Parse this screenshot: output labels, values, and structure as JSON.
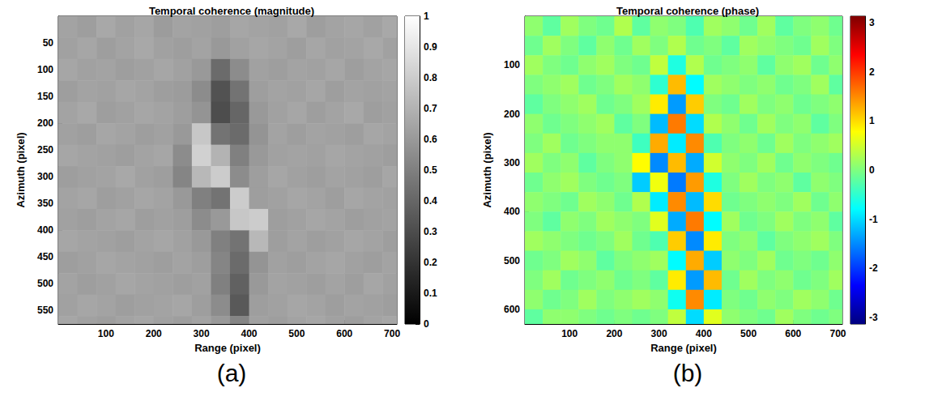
{
  "chart_data": [
    {
      "type": "heatmap",
      "title": "Temporal coherence (magnitude)",
      "x_label": "Range (pixel)",
      "y_label": "Azimuth (pixel)",
      "panel_label": "(a)",
      "xlim": [
        0,
        710
      ],
      "ylim": [
        0,
        575
      ],
      "xticks": [
        100,
        200,
        300,
        400,
        500,
        600,
        700
      ],
      "yticks": [
        50,
        100,
        150,
        200,
        250,
        300,
        350,
        400,
        450,
        500,
        550
      ],
      "x_bins": [
        0,
        40,
        80,
        120,
        160,
        200,
        240,
        280,
        320,
        360,
        400,
        440,
        480,
        520,
        560,
        600,
        640,
        680,
        720
      ],
      "y_bins": [
        0,
        40,
        80,
        120,
        160,
        200,
        240,
        280,
        320,
        360,
        400,
        440,
        480,
        520,
        560,
        600
      ],
      "values": [
        [
          0.64,
          0.62,
          0.66,
          0.63,
          0.65,
          0.61,
          0.64,
          0.63,
          0.62,
          0.65,
          0.64,
          0.63,
          0.66,
          0.62,
          0.64,
          0.65,
          0.63,
          0.66
        ],
        [
          0.63,
          0.65,
          0.62,
          0.64,
          0.66,
          0.63,
          0.62,
          0.64,
          0.6,
          0.63,
          0.65,
          0.64,
          0.62,
          0.65,
          0.63,
          0.64,
          0.66,
          0.63
        ],
        [
          0.65,
          0.63,
          0.64,
          0.62,
          0.63,
          0.65,
          0.63,
          0.6,
          0.42,
          0.55,
          0.63,
          0.62,
          0.64,
          0.63,
          0.65,
          0.62,
          0.64,
          0.65
        ],
        [
          0.62,
          0.64,
          0.63,
          0.65,
          0.64,
          0.62,
          0.61,
          0.55,
          0.32,
          0.45,
          0.62,
          0.64,
          0.63,
          0.65,
          0.62,
          0.64,
          0.63,
          0.64
        ],
        [
          0.64,
          0.66,
          0.62,
          0.63,
          0.65,
          0.64,
          0.62,
          0.58,
          0.3,
          0.4,
          0.6,
          0.63,
          0.65,
          0.62,
          0.64,
          0.66,
          0.62,
          0.63
        ],
        [
          0.63,
          0.62,
          0.65,
          0.64,
          0.62,
          0.63,
          0.6,
          0.78,
          0.45,
          0.42,
          0.58,
          0.64,
          0.62,
          0.64,
          0.63,
          0.62,
          0.65,
          0.64
        ],
        [
          0.65,
          0.64,
          0.63,
          0.62,
          0.64,
          0.65,
          0.55,
          0.82,
          0.7,
          0.5,
          0.6,
          0.63,
          0.64,
          0.63,
          0.65,
          0.64,
          0.63,
          0.62
        ],
        [
          0.62,
          0.63,
          0.64,
          0.66,
          0.63,
          0.62,
          0.52,
          0.72,
          0.8,
          0.55,
          0.62,
          0.65,
          0.63,
          0.62,
          0.64,
          0.63,
          0.62,
          0.65
        ],
        [
          0.64,
          0.65,
          0.62,
          0.63,
          0.65,
          0.64,
          0.6,
          0.5,
          0.45,
          0.8,
          0.62,
          0.63,
          0.65,
          0.64,
          0.62,
          0.65,
          0.64,
          0.63
        ],
        [
          0.63,
          0.62,
          0.64,
          0.65,
          0.62,
          0.63,
          0.62,
          0.55,
          0.6,
          0.78,
          0.8,
          0.62,
          0.63,
          0.65,
          0.64,
          0.62,
          0.63,
          0.64
        ],
        [
          0.65,
          0.64,
          0.63,
          0.62,
          0.64,
          0.65,
          0.63,
          0.6,
          0.5,
          0.45,
          0.72,
          0.62,
          0.64,
          0.62,
          0.63,
          0.65,
          0.64,
          0.62
        ],
        [
          0.62,
          0.63,
          0.65,
          0.64,
          0.63,
          0.62,
          0.64,
          0.62,
          0.52,
          0.42,
          0.58,
          0.63,
          0.62,
          0.64,
          0.65,
          0.63,
          0.62,
          0.64
        ],
        [
          0.64,
          0.62,
          0.63,
          0.65,
          0.64,
          0.63,
          0.62,
          0.63,
          0.5,
          0.38,
          0.6,
          0.64,
          0.63,
          0.62,
          0.64,
          0.62,
          0.65,
          0.63
        ],
        [
          0.63,
          0.65,
          0.64,
          0.62,
          0.63,
          0.64,
          0.65,
          0.62,
          0.55,
          0.35,
          0.62,
          0.63,
          0.65,
          0.64,
          0.62,
          0.64,
          0.63,
          0.62
        ],
        [
          0.65,
          0.63,
          0.62,
          0.64,
          0.65,
          0.63,
          0.62,
          0.64,
          0.6,
          0.52,
          0.63,
          0.62,
          0.64,
          0.65,
          0.63,
          0.62,
          0.64,
          0.65
        ]
      ],
      "colorbar": {
        "range": [
          0,
          1
        ],
        "ticks": [
          0,
          0.1,
          0.2,
          0.3,
          0.4,
          0.5,
          0.6,
          0.7,
          0.8,
          0.9,
          1
        ],
        "colors": [
          "#000000",
          "#ffffff"
        ]
      }
    },
    {
      "type": "heatmap",
      "title": "Temporal coherence (phase)",
      "x_label": "Range (pixel)",
      "y_label": "Azimuth (pixel)",
      "panel_label": "(b)",
      "xlim": [
        0,
        710
      ],
      "ylim": [
        0,
        630
      ],
      "xticks": [
        100,
        200,
        300,
        400,
        500,
        600,
        700
      ],
      "yticks": [
        100,
        200,
        300,
        400,
        500,
        600
      ],
      "x_bins": [
        0,
        40,
        80,
        120,
        160,
        200,
        240,
        280,
        320,
        360,
        400,
        440,
        480,
        520,
        560,
        600,
        640,
        680,
        720
      ],
      "y_bins": [
        0,
        40,
        80,
        120,
        160,
        200,
        240,
        280,
        320,
        360,
        400,
        440,
        480,
        520,
        560,
        600,
        640
      ],
      "values": [
        [
          0.1,
          -0.2,
          0.2,
          0.0,
          -0.1,
          0.3,
          -0.2,
          0.1,
          0.0,
          -0.3,
          0.2,
          0.1,
          -0.1,
          0.2,
          -0.2,
          0.0,
          0.1,
          -0.1
        ],
        [
          -0.1,
          0.2,
          0.0,
          -0.2,
          0.1,
          -0.1,
          0.2,
          0.0,
          0.3,
          -0.1,
          0.0,
          -0.2,
          0.2,
          0.1,
          0.0,
          -0.1,
          0.2,
          0.0
        ],
        [
          0.2,
          0.0,
          -0.1,
          0.1,
          0.2,
          0.0,
          -0.1,
          0.4,
          -0.6,
          0.3,
          -0.1,
          0.0,
          0.1,
          -0.2,
          0.1,
          0.2,
          -0.1,
          0.1
        ],
        [
          0.0,
          0.1,
          0.2,
          -0.1,
          0.0,
          0.2,
          0.1,
          -0.5,
          1.2,
          -0.8,
          0.2,
          0.1,
          0.0,
          0.1,
          -0.1,
          0.0,
          0.2,
          -0.2
        ],
        [
          -0.2,
          0.0,
          0.1,
          0.2,
          -0.1,
          0.0,
          0.2,
          0.9,
          -1.4,
          1.1,
          0.0,
          -0.1,
          0.2,
          0.0,
          0.1,
          -0.1,
          0.0,
          0.1
        ],
        [
          0.1,
          -0.1,
          0.0,
          0.1,
          0.2,
          -0.2,
          0.0,
          -1.2,
          1.6,
          -1.0,
          0.3,
          0.1,
          -0.1,
          0.2,
          0.0,
          0.1,
          -0.2,
          0.0
        ],
        [
          0.0,
          0.2,
          -0.1,
          0.0,
          0.1,
          0.1,
          -0.4,
          1.3,
          -0.9,
          1.5,
          -0.3,
          0.0,
          0.1,
          -0.1,
          0.2,
          0.0,
          0.1,
          0.2
        ],
        [
          0.2,
          0.0,
          0.1,
          -0.2,
          0.0,
          0.1,
          0.8,
          -1.5,
          1.2,
          -1.3,
          0.5,
          0.1,
          0.0,
          0.2,
          -0.1,
          0.1,
          0.0,
          -0.1
        ],
        [
          -0.1,
          0.1,
          0.2,
          0.0,
          -0.1,
          0.0,
          -1.1,
          0.7,
          -1.6,
          1.4,
          -0.6,
          0.0,
          0.2,
          0.0,
          0.1,
          -0.2,
          0.1,
          0.0
        ],
        [
          0.1,
          0.0,
          -0.1,
          0.2,
          0.1,
          -0.1,
          0.3,
          -0.9,
          1.5,
          -1.2,
          1.0,
          -0.1,
          0.0,
          0.1,
          0.0,
          0.2,
          -0.1,
          0.1
        ],
        [
          0.0,
          -0.2,
          0.1,
          0.0,
          0.2,
          0.1,
          0.0,
          0.6,
          -1.3,
          1.6,
          -0.8,
          0.2,
          -0.1,
          0.0,
          0.2,
          0.0,
          0.1,
          -0.2
        ],
        [
          0.2,
          0.1,
          0.0,
          -0.1,
          0.0,
          0.2,
          -0.1,
          -0.3,
          1.1,
          -1.5,
          0.9,
          0.0,
          0.1,
          -0.2,
          0.0,
          0.1,
          0.2,
          0.0
        ],
        [
          -0.1,
          0.0,
          0.2,
          0.1,
          -0.2,
          0.0,
          0.1,
          0.2,
          -0.8,
          1.3,
          -1.1,
          0.1,
          0.0,
          0.2,
          -0.1,
          0.0,
          -0.1,
          0.1
        ],
        [
          0.0,
          0.2,
          -0.1,
          0.0,
          0.1,
          -0.1,
          0.0,
          -0.2,
          0.9,
          -1.4,
          1.2,
          -0.1,
          0.2,
          0.0,
          0.1,
          -0.1,
          0.0,
          0.2
        ],
        [
          0.1,
          -0.1,
          0.0,
          0.2,
          0.0,
          0.1,
          0.2,
          0.1,
          -0.7,
          1.5,
          -0.9,
          0.0,
          -0.1,
          0.1,
          0.0,
          0.2,
          0.1,
          -0.1
        ],
        [
          -0.2,
          0.1,
          0.1,
          0.0,
          -0.1,
          0.0,
          -0.1,
          0.0,
          0.4,
          -1.0,
          0.6,
          0.1,
          0.0,
          -0.1,
          0.2,
          0.0,
          -0.1,
          0.0
        ]
      ],
      "colorbar": {
        "range": [
          -3.14,
          3.14
        ],
        "ticks": [
          -3,
          -2,
          -1,
          0,
          1,
          2,
          3
        ],
        "colors": [
          "#00007f",
          "#0000ff",
          "#007fff",
          "#00ffff",
          "#7fff7f",
          "#ffff00",
          "#ff7f00",
          "#ff0000",
          "#7f0000"
        ]
      }
    }
  ]
}
